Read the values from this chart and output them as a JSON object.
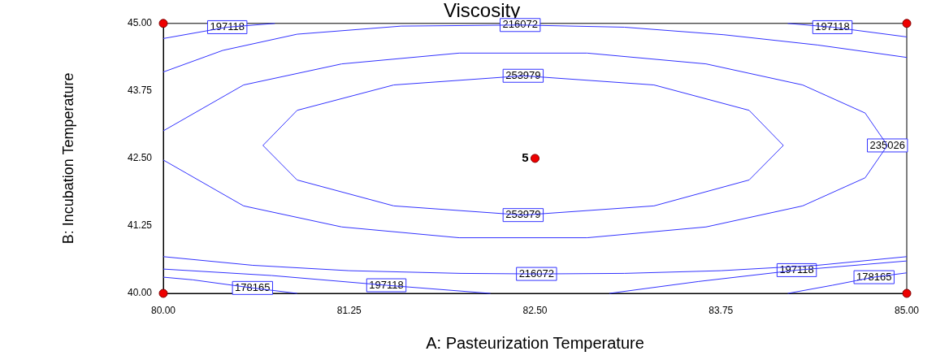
{
  "chart_data": {
    "type": "line",
    "title": "Viscosity",
    "xlabel": "A: Pasteurization Temperature",
    "ylabel": "B: Incubation Temperature",
    "xlim": [
      80,
      85
    ],
    "xticks": [
      {
        "value": 80,
        "label": "80.00"
      },
      {
        "value": 81.25,
        "label": "81.25"
      },
      {
        "value": 82.5,
        "label": "82.50"
      },
      {
        "value": 83.75,
        "label": "83.75"
      },
      {
        "value": 85,
        "label": "85.00"
      }
    ],
    "ylim": [
      40,
      45
    ],
    "yticks": [
      {
        "value": 40,
        "label": "40.00"
      },
      {
        "value": 41.25,
        "label": "41.25"
      },
      {
        "value": 42.5,
        "label": "42.50"
      },
      {
        "value": 43.75,
        "label": "43.75"
      },
      {
        "value": 45,
        "label": "45.00"
      }
    ],
    "grid": false,
    "legend": false,
    "marker": "none",
    "line_style": "solid",
    "series": [
      {
        "name": "178165",
        "color": "#3333ff",
        "x": [
          80,
          80.2,
          80.6,
          80.9,
          null,
          84.2,
          84.5,
          84.78,
          85
        ],
        "values": [
          40.3,
          40.25,
          40.1,
          40.0,
          null,
          40.0,
          40.15,
          40.3,
          40.38
        ]
      },
      {
        "name": "197118",
        "color": "#3333ff",
        "x": [
          80,
          80.43,
          80.75,
          null,
          84.2,
          84.5,
          85,
          null,
          80,
          80.73,
          81.5,
          82.2,
          null,
          83.0,
          83.6,
          84.26,
          85
        ],
        "values": [
          44.72,
          44.93,
          45.0,
          null,
          45.0,
          44.93,
          44.75,
          null,
          40.45,
          40.33,
          40.15,
          40.0,
          null,
          40.0,
          40.22,
          40.43,
          40.6
        ]
      },
      {
        "name": "216072",
        "color": "#3333ff",
        "x": [
          80,
          80.4,
          80.9,
          81.6,
          82.4,
          83.1,
          83.77,
          84.4,
          85,
          null,
          80,
          80.6,
          81.25,
          82.0,
          82.51,
          83.1,
          83.75,
          84.4,
          85
        ],
        "values": [
          44.1,
          44.5,
          44.8,
          44.95,
          44.97,
          44.93,
          44.79,
          44.6,
          44.37,
          null,
          40.68,
          40.52,
          40.42,
          40.37,
          40.36,
          40.37,
          40.42,
          40.52,
          40.68
        ]
      },
      {
        "name": "235026",
        "color": "#3333ff",
        "x": [
          80,
          80.54,
          81.2,
          81.99,
          82.85,
          83.65,
          84.3,
          84.72,
          84.87,
          84.72,
          84.3,
          83.65,
          82.85,
          81.99,
          81.2,
          80.54,
          80
        ],
        "values": [
          43.01,
          43.86,
          44.25,
          44.45,
          44.45,
          44.25,
          43.86,
          43.34,
          42.74,
          42.14,
          41.62,
          41.23,
          41.03,
          41.03,
          41.23,
          41.62,
          42.47
        ]
      },
      {
        "name": "253979",
        "color": "#3333ff",
        "x": [
          80.67,
          80.9,
          81.55,
          82.42,
          83.3,
          83.94,
          84.17,
          null,
          80.67,
          80.9,
          81.55,
          82.42,
          83.3,
          83.94,
          84.17
        ],
        "values": [
          42.74,
          42.1,
          41.62,
          41.45,
          41.62,
          42.1,
          42.74,
          null,
          42.74,
          43.39,
          43.86,
          44.03,
          43.86,
          43.39,
          42.74
        ]
      },
      {
        "type": "scatter",
        "marker": "circle",
        "color": "#ee0000",
        "x": [
          80,
          80,
          85,
          85,
          82.5
        ],
        "values": [
          40,
          45,
          40,
          45,
          42.5
        ]
      }
    ],
    "annotations": [
      {
        "text": "5",
        "x": 82.5,
        "y": 42.5
      }
    ]
  }
}
